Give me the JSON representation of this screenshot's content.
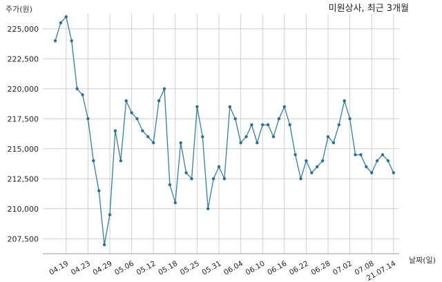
{
  "chart_data": {
    "type": "line",
    "title": "미원상사, 최근 3개월",
    "ylabel": "주가(원)",
    "xlabel": "날짜(일)",
    "ylim": [
      206250,
      226250
    ],
    "yticks": [
      207500,
      210000,
      212500,
      215000,
      217500,
      220000,
      222500,
      225000
    ],
    "ytick_labels": [
      "207,500",
      "210,000",
      "212,500",
      "215,000",
      "217,500",
      "220,000",
      "222,500",
      "225,000"
    ],
    "grid": true,
    "x_labels": [
      "04.19",
      "04.23",
      "04.29",
      "05.06",
      "05.12",
      "05.18",
      "05.25",
      "05.31",
      "06.04",
      "06.10",
      "06.16",
      "06.22",
      "06.28",
      "07.02",
      "07.08",
      "21.07.14"
    ],
    "x_label_index": [
      2,
      6,
      10,
      14,
      18,
      22,
      26,
      30,
      34,
      38,
      42,
      46,
      50,
      54,
      58,
      62
    ],
    "series": [
      {
        "color": "#2f7ea6",
        "values": [
          224000,
          225500,
          226000,
          224000,
          220000,
          219500,
          217500,
          214000,
          211500,
          207000,
          209500,
          216500,
          214000,
          219000,
          218000,
          217500,
          216500,
          216000,
          215500,
          219000,
          220000,
          212000,
          210500,
          215500,
          213000,
          212500,
          218500,
          216000,
          210000,
          212500,
          213500,
          212500,
          218500,
          217500,
          215500,
          216000,
          217000,
          215500,
          217000,
          217000,
          216000,
          217500,
          218500,
          217000,
          214500,
          212500,
          214000,
          213000,
          213500,
          214000,
          216000,
          215500,
          217000,
          219000,
          217500,
          214500,
          214500,
          213500,
          213000,
          214000,
          214500,
          214000,
          213000
        ]
      }
    ]
  }
}
